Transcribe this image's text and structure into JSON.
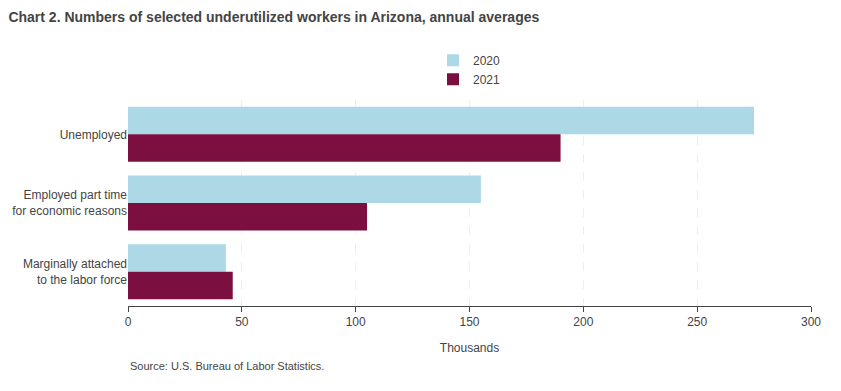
{
  "chart_data": {
    "type": "bar",
    "orientation": "horizontal",
    "title": "Chart 2. Numbers of selected underutilized workers in Arizona, annual averages",
    "categories": [
      "Unemployed",
      "Employed part time\nfor economic reasons",
      "Marginally attached\nto the labor force"
    ],
    "series": [
      {
        "name": "2020",
        "color": "#add8e6",
        "values": [
          275,
          155,
          43
        ]
      },
      {
        "name": "2021",
        "color": "#7b1040",
        "values": [
          190,
          105,
          46
        ]
      }
    ],
    "xlabel": "Thousands",
    "xlim": [
      0,
      300
    ],
    "xticks": [
      0,
      50,
      100,
      150,
      200,
      250,
      300
    ],
    "grid": true,
    "legend": "top",
    "annotations": [
      "Source: U.S. Bureau of Labor Statistics."
    ]
  }
}
